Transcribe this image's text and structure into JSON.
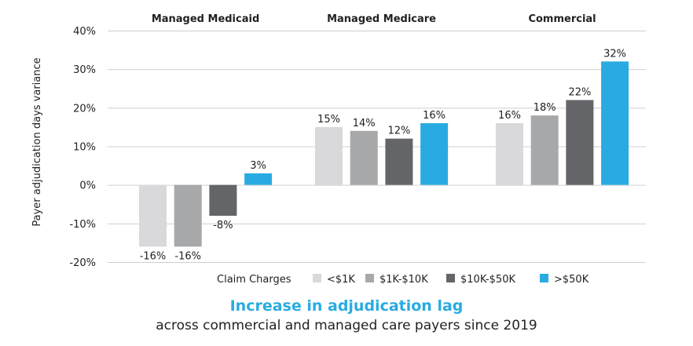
{
  "chart_data": {
    "type": "bar",
    "categories": [
      "Managed Medicaid",
      "Managed Medicare",
      "Commercial"
    ],
    "series": [
      {
        "name": "<$1K",
        "color": "#d9d9db",
        "values": [
          -16,
          15,
          16
        ],
        "labels": [
          "-16%",
          "15%",
          "16%"
        ]
      },
      {
        "name": "$1K-$10K",
        "color": "#a7a8aa",
        "values": [
          -16,
          14,
          18
        ],
        "labels": [
          "-16%",
          "14%",
          "18%"
        ]
      },
      {
        "name": "$10K-$50K",
        "color": "#636569",
        "values": [
          -8,
          12,
          22
        ],
        "labels": [
          "-8%",
          "12%",
          "22%"
        ]
      },
      {
        "name": ">$50K",
        "color": "#29abe2",
        "values": [
          3,
          16,
          32
        ],
        "labels": [
          "3%",
          "16%",
          "32%"
        ]
      }
    ],
    "ylim": [
      -20,
      40
    ],
    "yticks": [
      40,
      30,
      20,
      10,
      0,
      -10,
      -20
    ],
    "ytick_labels": [
      "40%",
      "30%",
      "20%",
      "10%",
      "0%",
      "-10%",
      "-20%"
    ],
    "ylabel": "Payer adjudication days variance",
    "legend_title": "Claim Charges",
    "legend_position": "bottom",
    "grid": true
  },
  "title": "Increase in adjudication lag",
  "subtitle": "across commercial and managed care payers since 2019"
}
